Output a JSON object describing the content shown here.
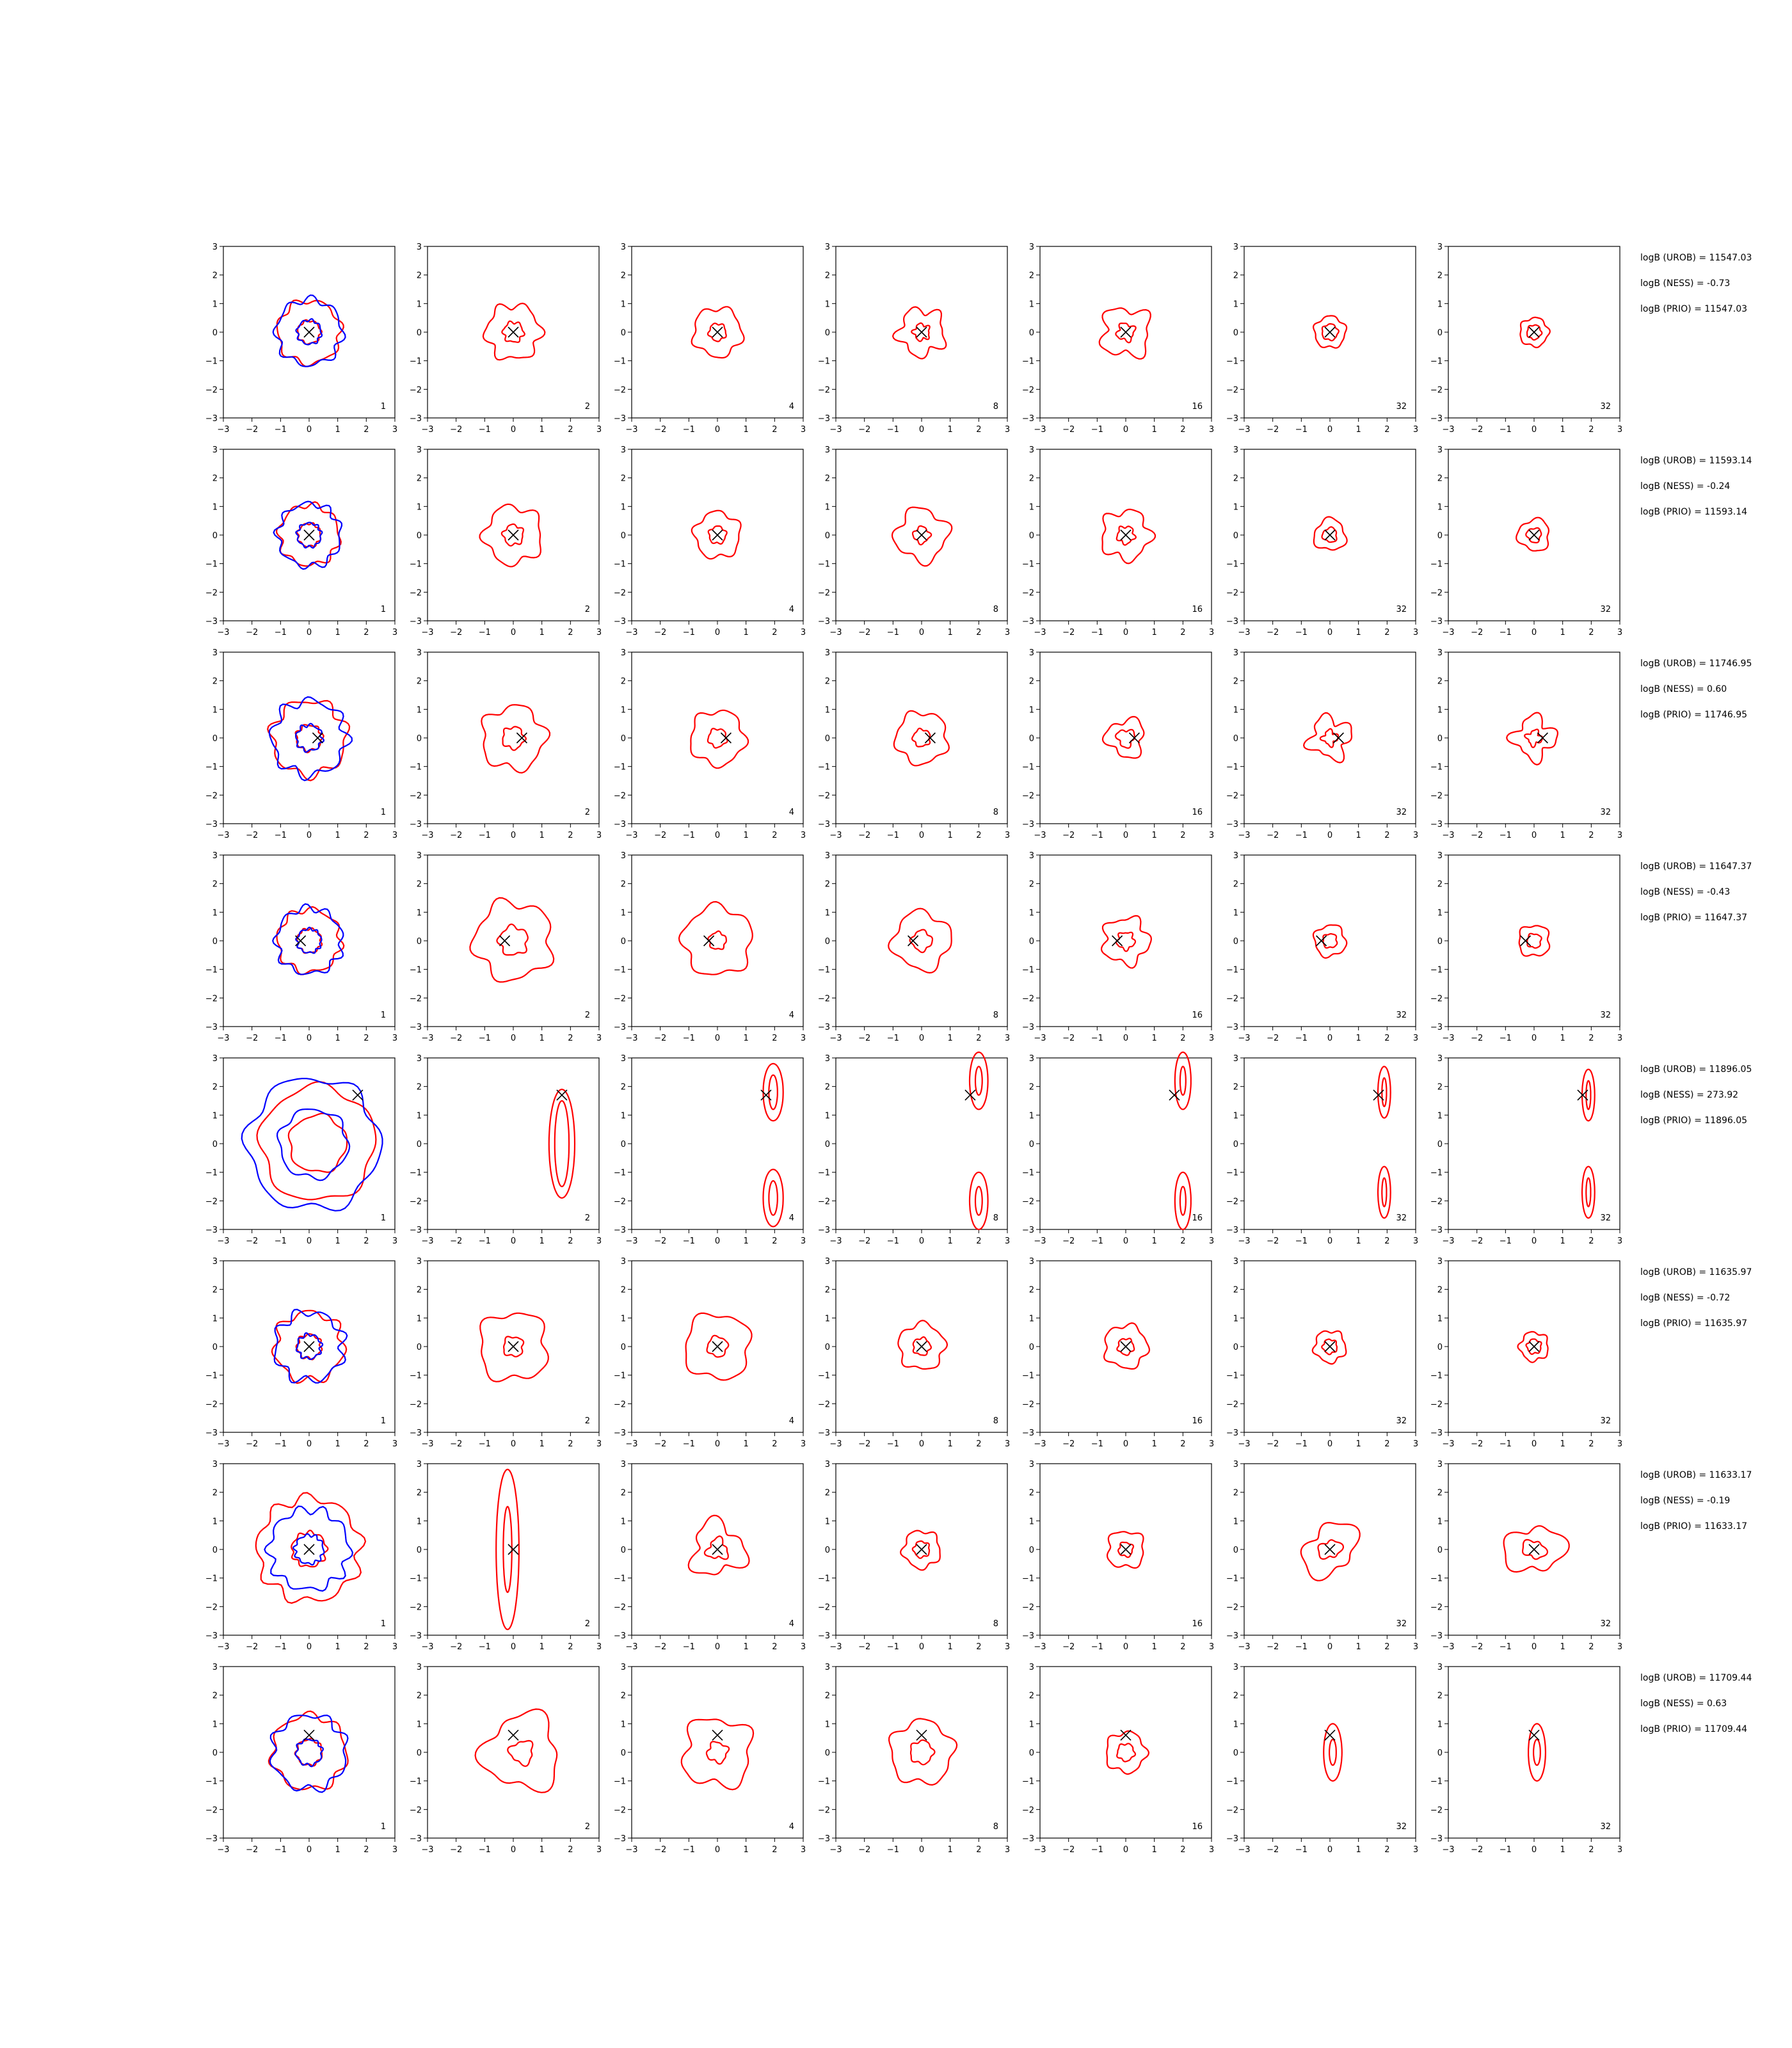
{
  "chart_data": {
    "type": "contour-grid",
    "layout": {
      "rows": 8,
      "cols": 7
    },
    "axes": {
      "xlim": [
        -3,
        3
      ],
      "ylim": [
        -3,
        3
      ],
      "ticks": [
        -3,
        -2,
        -1,
        0,
        1,
        2,
        3
      ],
      "tick_labels": [
        "−3",
        "−2",
        "−1",
        "0",
        "1",
        "2",
        "3"
      ]
    },
    "panel_labels": [
      "1",
      "2",
      "4",
      "8",
      "16",
      "32",
      "32"
    ],
    "colors": {
      "contour_primary": "#ff0000",
      "contour_reference": "#0000ff",
      "marker": "#000000"
    },
    "rows": [
      {
        "marker": [
          0.0,
          0.0
        ],
        "stats": [
          "logB (UROB) = 11547.03",
          "logB (NESS) = -0.73",
          "logB (PRIO) = 11547.03"
        ],
        "panels": [
          {
            "shape": "blob",
            "cx": 0.0,
            "cy": 0.0,
            "r": [
              1.1,
              0.4
            ],
            "blue": [
              1.15,
              0.42
            ],
            "amp": 0.08,
            "k": 7
          },
          {
            "shape": "blob",
            "cx": 0.0,
            "cy": 0.0,
            "r": [
              0.95,
              0.35
            ],
            "amp": 0.12,
            "k": 6
          },
          {
            "shape": "blob",
            "cx": 0.0,
            "cy": 0.0,
            "r": [
              0.85,
              0.3
            ],
            "amp": 0.1,
            "k": 5
          },
          {
            "shape": "blob",
            "cx": 0.0,
            "cy": 0.0,
            "r": [
              0.8,
              0.28
            ],
            "amp": 0.18,
            "k": 5
          },
          {
            "shape": "blob",
            "cx": 0.0,
            "cy": 0.0,
            "r": [
              0.85,
              0.3
            ],
            "amp": 0.2,
            "k": 4
          },
          {
            "shape": "blob",
            "cx": 0.0,
            "cy": 0.0,
            "r": [
              0.55,
              0.28
            ],
            "amp": 0.08,
            "k": 5
          },
          {
            "shape": "blob",
            "cx": 0.0,
            "cy": 0.0,
            "r": [
              0.5,
              0.25
            ],
            "amp": 0.08,
            "k": 5
          }
        ]
      },
      {
        "marker": [
          0.0,
          0.0
        ],
        "stats": [
          "logB (UROB) = 11593.14",
          "logB (NESS) = -0.24",
          "logB (PRIO) = 11593.14"
        ],
        "panels": [
          {
            "shape": "blob",
            "cx": 0.0,
            "cy": 0.0,
            "r": [
              1.05,
              0.4
            ],
            "blue": [
              1.1,
              0.42
            ],
            "amp": 0.08,
            "k": 8
          },
          {
            "shape": "blob",
            "cx": 0.0,
            "cy": 0.0,
            "r": [
              1.0,
              0.35
            ],
            "amp": 0.12,
            "k": 5
          },
          {
            "shape": "blob",
            "cx": 0.0,
            "cy": 0.0,
            "r": [
              0.8,
              0.3
            ],
            "amp": 0.1,
            "k": 5
          },
          {
            "shape": "blob",
            "cx": 0.0,
            "cy": 0.0,
            "r": [
              0.9,
              0.28
            ],
            "amp": 0.15,
            "k": 4
          },
          {
            "shape": "blob",
            "cx": 0.0,
            "cy": 0.0,
            "r": [
              0.85,
              0.3
            ],
            "amp": 0.15,
            "k": 5
          },
          {
            "shape": "blob",
            "cx": 0.0,
            "cy": 0.0,
            "r": [
              0.55,
              0.25
            ],
            "amp": 0.12,
            "k": 3
          },
          {
            "shape": "blob",
            "cx": 0.0,
            "cy": 0.0,
            "r": [
              0.55,
              0.25
            ],
            "amp": 0.12,
            "k": 3
          }
        ]
      },
      {
        "marker": [
          0.3,
          0.0
        ],
        "stats": [
          "logB (UROB) = 11746.95",
          "logB (NESS) = 0.60",
          "logB (PRIO) = 11746.95"
        ],
        "panels": [
          {
            "shape": "blob",
            "cx": 0.0,
            "cy": 0.0,
            "r": [
              1.3,
              0.45
            ],
            "blue": [
              1.3,
              0.45
            ],
            "amp": 0.1,
            "k": 7
          },
          {
            "shape": "blob",
            "cx": 0.0,
            "cy": 0.0,
            "r": [
              1.1,
              0.38
            ],
            "amp": 0.12,
            "k": 5
          },
          {
            "shape": "blob",
            "cx": 0.0,
            "cy": 0.0,
            "r": [
              0.95,
              0.32
            ],
            "amp": 0.1,
            "k": 5
          },
          {
            "shape": "blob",
            "cx": 0.0,
            "cy": 0.0,
            "r": [
              0.9,
              0.3
            ],
            "amp": 0.1,
            "k": 5
          },
          {
            "shape": "blob",
            "cx": 0.0,
            "cy": 0.0,
            "r": [
              0.65,
              0.3
            ],
            "amp": 0.2,
            "k": 3
          },
          {
            "shape": "blob",
            "cx": 0.0,
            "cy": 0.0,
            "r": [
              0.7,
              0.25
            ],
            "amp": 0.25,
            "k": 4
          },
          {
            "shape": "blob",
            "cx": 0.0,
            "cy": 0.0,
            "r": [
              0.7,
              0.25
            ],
            "amp": 0.25,
            "k": 4
          }
        ]
      },
      {
        "marker": [
          -0.3,
          0.0
        ],
        "stats": [
          "logB (UROB) = 11647.37",
          "logB (NESS) = -0.43",
          "logB (PRIO) = 11647.37"
        ],
        "panels": [
          {
            "shape": "blob",
            "cx": 0.0,
            "cy": 0.0,
            "r": [
              1.1,
              0.42
            ],
            "blue": [
              1.15,
              0.42
            ],
            "amp": 0.08,
            "k": 8
          },
          {
            "shape": "blob",
            "cx": 0.0,
            "cy": 0.0,
            "r": [
              1.35,
              0.5
            ],
            "amp": 0.12,
            "k": 5
          },
          {
            "shape": "blob",
            "cx": 0.0,
            "cy": 0.0,
            "r": [
              1.2,
              0.3
            ],
            "amp": 0.1,
            "k": 5
          },
          {
            "shape": "blob",
            "cx": 0.0,
            "cy": 0.0,
            "r": [
              1.0,
              0.35
            ],
            "amp": 0.12,
            "k": 4
          },
          {
            "shape": "blob",
            "cx": 0.0,
            "cy": 0.0,
            "r": [
              0.8,
              0.3
            ],
            "amp": 0.15,
            "k": 5
          },
          {
            "shape": "blob",
            "cx": 0.0,
            "cy": 0.0,
            "r": [
              0.55,
              0.25
            ],
            "amp": 0.1,
            "k": 4
          },
          {
            "shape": "blob",
            "cx": 0.0,
            "cy": 0.0,
            "r": [
              0.55,
              0.25
            ],
            "amp": 0.1,
            "k": 4
          }
        ]
      },
      {
        "marker": [
          1.7,
          1.7
        ],
        "stats": [
          "logB (UROB) = 11896.05",
          "logB (NESS) = 273.92",
          "logB (PRIO) = 11896.05"
        ],
        "panels": [
          {
            "shape": "blob",
            "cx": 0.3,
            "cy": 0.0,
            "r": [
              2.0,
              1.0
            ],
            "blue": [
              2.3,
              1.2
            ],
            "amp": 0.06,
            "k": 5
          },
          {
            "shape": "ellipse",
            "cx": 1.7,
            "cy": 0.0,
            "rx": [
              0.45,
              0.25
            ],
            "ry": [
              1.9,
              1.5
            ]
          },
          {
            "shape": "pair",
            "cx": 1.95,
            "cy": [
              1.8,
              -1.9
            ],
            "rx": [
              0.35,
              0.15
            ],
            "ry": [
              1.0,
              0.6
            ]
          },
          {
            "shape": "pair",
            "cx": 2.0,
            "cy": [
              2.2,
              -2.0
            ],
            "rx": [
              0.32,
              0.12
            ],
            "ry": [
              1.0,
              0.5
            ]
          },
          {
            "shape": "pair",
            "cx": 2.0,
            "cy": [
              2.2,
              -2.0
            ],
            "rx": [
              0.28,
              0.1
            ],
            "ry": [
              1.0,
              0.5
            ]
          },
          {
            "shape": "pair",
            "cx": 1.9,
            "cy": [
              1.8,
              -1.7
            ],
            "rx": [
              0.22,
              0.08
            ],
            "ry": [
              0.9,
              0.5
            ]
          },
          {
            "shape": "pair",
            "cx": 1.9,
            "cy": [
              1.7,
              -1.7
            ],
            "rx": [
              0.22,
              0.08
            ],
            "ry": [
              0.9,
              0.5
            ]
          }
        ]
      },
      {
        "marker": [
          0.0,
          0.0
        ],
        "stats": [
          "logB (UROB) = 11635.97",
          "logB (NESS) = -0.72",
          "logB (PRIO) = 11635.97"
        ],
        "panels": [
          {
            "shape": "blob",
            "cx": 0.0,
            "cy": 0.0,
            "r": [
              1.2,
              0.42
            ],
            "blue": [
              1.2,
              0.42
            ],
            "amp": 0.1,
            "k": 7
          },
          {
            "shape": "blob",
            "cx": 0.0,
            "cy": 0.0,
            "r": [
              1.2,
              0.35
            ],
            "amp": 0.12,
            "k": 4
          },
          {
            "shape": "blob",
            "cx": 0.0,
            "cy": 0.0,
            "r": [
              1.15,
              0.35
            ],
            "amp": 0.1,
            "k": 4
          },
          {
            "shape": "blob",
            "cx": 0.0,
            "cy": 0.0,
            "r": [
              0.8,
              0.3
            ],
            "amp": 0.1,
            "k": 5
          },
          {
            "shape": "blob",
            "cx": 0.0,
            "cy": 0.0,
            "r": [
              0.75,
              0.28
            ],
            "amp": 0.1,
            "k": 5
          },
          {
            "shape": "blob",
            "cx": 0.0,
            "cy": 0.0,
            "r": [
              0.55,
              0.25
            ],
            "amp": 0.1,
            "k": 5
          },
          {
            "shape": "blob",
            "cx": 0.0,
            "cy": 0.0,
            "r": [
              0.5,
              0.25
            ],
            "amp": 0.1,
            "k": 5
          }
        ]
      },
      {
        "marker": [
          0.0,
          0.0
        ],
        "stats": [
          "logB (UROB) = 11633.17",
          "logB (NESS) = -0.19",
          "logB (PRIO) = 11633.17"
        ],
        "panels": [
          {
            "shape": "blob",
            "cx": 0.0,
            "cy": 0.0,
            "r": [
              1.8,
              0.6
            ],
            "blue": [
              1.4,
              0.5
            ],
            "amp": 0.08,
            "k": 9
          },
          {
            "shape": "ellipse",
            "cx": -0.2,
            "cy": 0.0,
            "rx": [
              0.4,
              0.15
            ],
            "ry": [
              2.8,
              1.5
            ]
          },
          {
            "shape": "blob",
            "cx": 0.0,
            "cy": 0.0,
            "r": [
              0.9,
              0.35
            ],
            "amp": 0.25,
            "k": 3
          },
          {
            "shape": "blob",
            "cx": 0.0,
            "cy": 0.0,
            "r": [
              0.65,
              0.28
            ],
            "amp": 0.1,
            "k": 5
          },
          {
            "shape": "blob",
            "cx": 0.0,
            "cy": 0.0,
            "r": [
              0.65,
              0.25
            ],
            "amp": 0.12,
            "k": 4
          },
          {
            "shape": "blob",
            "cx": 0.0,
            "cy": 0.0,
            "r": [
              0.9,
              0.35
            ],
            "amp": 0.25,
            "k": 2
          },
          {
            "shape": "blob",
            "cx": 0.0,
            "cy": 0.0,
            "r": [
              0.9,
              0.35
            ],
            "amp": 0.25,
            "k": 2
          }
        ]
      },
      {
        "marker": [
          0.0,
          0.6
        ],
        "stats": [
          "logB (UROB) = 11709.44",
          "logB (NESS) = 0.63",
          "logB (PRIO) = 11709.44"
        ],
        "panels": [
          {
            "shape": "blob",
            "cx": 0.0,
            "cy": 0.0,
            "r": [
              1.3,
              0.45
            ],
            "blue": [
              1.3,
              0.45
            ],
            "amp": 0.08,
            "k": 7
          },
          {
            "shape": "blob",
            "cx": 0.3,
            "cy": 0.0,
            "r": [
              1.3,
              0.4
            ],
            "amp": 0.18,
            "k": 3
          },
          {
            "shape": "blob",
            "cx": 0.0,
            "cy": 0.0,
            "r": [
              1.2,
              0.35
            ],
            "amp": 0.15,
            "k": 4
          },
          {
            "shape": "blob",
            "cx": 0.0,
            "cy": 0.0,
            "r": [
              1.1,
              0.4
            ],
            "amp": 0.1,
            "k": 5
          },
          {
            "shape": "blob",
            "cx": 0.0,
            "cy": 0.0,
            "r": [
              0.7,
              0.3
            ],
            "amp": 0.1,
            "k": 5
          },
          {
            "shape": "ellipse",
            "cx": 0.1,
            "cy": 0.0,
            "rx": [
              0.32,
              0.12
            ],
            "ry": [
              1.0,
              0.45
            ]
          },
          {
            "shape": "ellipse",
            "cx": 0.1,
            "cy": 0.0,
            "rx": [
              0.3,
              0.12
            ],
            "ry": [
              1.0,
              0.45
            ]
          }
        ]
      }
    ]
  }
}
